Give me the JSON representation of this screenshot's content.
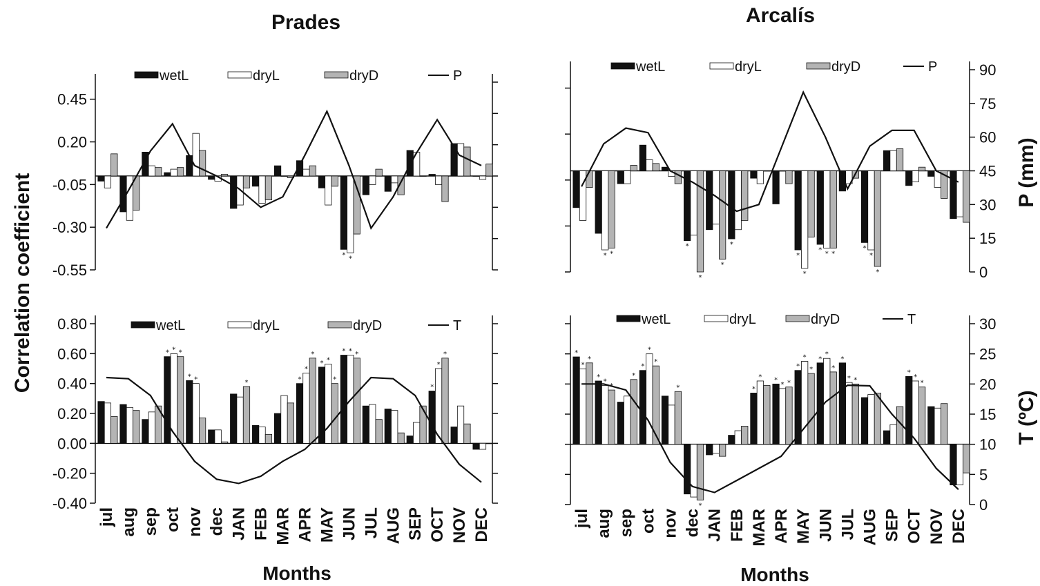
{
  "figure": {
    "months_label": "Months",
    "y_label_corr": "Correlation coefficient",
    "y_label_p": "P (mm)",
    "y_label_t": "T (ºC)",
    "colors": {
      "wetL": "#111111",
      "dryL": "#ffffff",
      "dryD": "#b4b4b4",
      "line": "#111111"
    }
  },
  "chart_data": [
    {
      "id": "prades_p",
      "type": "bar",
      "title": "Prades",
      "ylabel": "Correlation coefficient",
      "ylim": [
        -0.55,
        0.55
      ],
      "y_ticks": [
        0.45,
        0.2,
        -0.05,
        -0.3,
        -0.55
      ],
      "y_tick_labels": [
        "0.45",
        "0.20",
        "-0.05",
        "-0.30",
        "-0.55"
      ],
      "categories": [
        "jul",
        "aug",
        "sep",
        "oct",
        "nov",
        "dec",
        "JAN",
        "FEB",
        "MAR",
        "APR",
        "MAY",
        "JUN",
        "JUL",
        "AUG",
        "SEP",
        "OCT",
        "NOV",
        "DEC"
      ],
      "legend": [
        "wetL",
        "dryL",
        "dryD",
        "P"
      ],
      "series": [
        {
          "name": "wetL",
          "values": [
            -0.03,
            -0.21,
            0.14,
            0.02,
            0.12,
            -0.02,
            -0.19,
            -0.06,
            0.06,
            0.09,
            -0.07,
            -0.43,
            -0.11,
            -0.09,
            0.15,
            0.01,
            0.19,
            0.0
          ]
        },
        {
          "name": "dryL",
          "values": [
            -0.07,
            -0.26,
            0.06,
            0.04,
            0.25,
            -0.03,
            -0.17,
            -0.16,
            0.0,
            0.04,
            -0.17,
            -0.45,
            -0.05,
            -0.04,
            0.14,
            -0.05,
            0.19,
            -0.02
          ]
        },
        {
          "name": "dryD",
          "values": [
            0.13,
            -0.2,
            0.05,
            0.05,
            0.15,
            0.01,
            -0.07,
            -0.14,
            -0.01,
            0.06,
            -0.06,
            -0.34,
            0.04,
            -0.11,
            0.0,
            -0.15,
            0.17,
            0.07
          ]
        },
        {
          "name": "P",
          "axis": "right",
          "values": [
            20,
            38,
            57,
            70,
            50,
            45,
            39,
            30,
            35,
            55,
            76,
            50,
            20,
            35,
            55,
            72,
            55,
            50
          ]
        }
      ],
      "significance": [
        [
          11,
          0
        ],
        [
          11,
          1
        ]
      ],
      "y2lim": [
        0,
        90
      ],
      "y2_ticks": [
        0,
        15,
        30,
        45,
        60,
        75,
        90
      ]
    },
    {
      "id": "arcalis_p",
      "type": "bar",
      "title": "Arcalís",
      "ylabel": "P (mm)",
      "ylim": [
        -0.55,
        0.55
      ],
      "categories": [
        "jul",
        "aug",
        "sep",
        "oct",
        "nov",
        "dec",
        "JAN",
        "FEB",
        "MAR",
        "APR",
        "MAY",
        "JUN",
        "JUL",
        "AUG",
        "SEP",
        "OCT",
        "NOV",
        "DEC"
      ],
      "legend": [
        "wetL",
        "dryL",
        "dryD",
        "P"
      ],
      "series": [
        {
          "name": "wetL",
          "values": [
            -0.2,
            -0.34,
            -0.07,
            0.14,
            0.02,
            -0.38,
            -0.32,
            -0.37,
            -0.04,
            -0.18,
            -0.43,
            -0.4,
            -0.11,
            -0.39,
            0.11,
            -0.08,
            -0.03,
            -0.26
          ]
        },
        {
          "name": "dryL",
          "values": [
            -0.27,
            -0.43,
            -0.07,
            0.06,
            -0.03,
            -0.35,
            -0.29,
            -0.32,
            -0.07,
            0.0,
            -0.53,
            -0.42,
            -0.07,
            -0.43,
            0.11,
            -0.06,
            -0.09,
            -0.25
          ]
        },
        {
          "name": "dryD",
          "values": [
            -0.09,
            -0.42,
            0.03,
            0.04,
            -0.07,
            -0.55,
            -0.48,
            -0.27,
            0.0,
            -0.07,
            -0.36,
            -0.42,
            -0.04,
            -0.52,
            0.12,
            0.02,
            -0.15,
            -0.28
          ]
        },
        {
          "name": "P",
          "axis": "right",
          "values": [
            38,
            57,
            64,
            62,
            45,
            40,
            34,
            27,
            30,
            55,
            80,
            60,
            37,
            56,
            63,
            63,
            45,
            40
          ]
        }
      ],
      "significance": [
        [
          1,
          1
        ],
        [
          1,
          2
        ],
        [
          5,
          0
        ],
        [
          5,
          2
        ],
        [
          6,
          2
        ],
        [
          7,
          0
        ],
        [
          10,
          0
        ],
        [
          10,
          1
        ],
        [
          11,
          0
        ],
        [
          11,
          1
        ],
        [
          11,
          2
        ],
        [
          13,
          0
        ],
        [
          13,
          1
        ],
        [
          13,
          2
        ]
      ],
      "y2lim": [
        0,
        90
      ],
      "y2_ticks": [
        0,
        15,
        30,
        45,
        60,
        75,
        90
      ],
      "y2_tick_labels": [
        "0",
        "15",
        "30",
        "45",
        "60",
        "75",
        "90"
      ]
    },
    {
      "id": "prades_t",
      "type": "bar",
      "xlabel": "Months",
      "ylabel": "Correlation coefficient",
      "ylim": [
        -0.4,
        0.8
      ],
      "y_ticks": [
        0.8,
        0.6,
        0.4,
        0.2,
        0.0,
        -0.2,
        -0.4
      ],
      "y_tick_labels": [
        "0.80",
        "0.60",
        "0.40",
        "0.20",
        "0.00",
        "-0.20",
        "-0.40"
      ],
      "categories": [
        "jul",
        "aug",
        "sep",
        "oct",
        "nov",
        "dec",
        "JAN",
        "FEB",
        "MAR",
        "APR",
        "MAY",
        "JUN",
        "JUL",
        "AUG",
        "SEP",
        "OCT",
        "NOV",
        "DEC"
      ],
      "legend": [
        "wetL",
        "dryL",
        "dryD",
        "T"
      ],
      "series": [
        {
          "name": "wetL",
          "values": [
            0.28,
            0.26,
            0.16,
            0.58,
            0.42,
            0.09,
            0.33,
            0.12,
            0.2,
            0.4,
            0.51,
            0.59,
            0.25,
            0.23,
            0.05,
            0.35,
            0.11,
            -0.04
          ]
        },
        {
          "name": "dryL",
          "values": [
            0.27,
            0.24,
            0.21,
            0.6,
            0.4,
            0.09,
            0.31,
            0.11,
            0.32,
            0.47,
            0.53,
            0.59,
            0.26,
            0.22,
            0.14,
            0.5,
            0.25,
            -0.04
          ]
        },
        {
          "name": "dryD",
          "values": [
            0.18,
            0.22,
            0.25,
            0.58,
            0.17,
            0.01,
            0.38,
            0.06,
            0.27,
            0.57,
            0.4,
            0.57,
            0.16,
            0.07,
            0.25,
            0.57,
            0.13,
            0.0
          ]
        },
        {
          "name": "T",
          "axis": "right",
          "values": [
            21,
            20.8,
            18,
            12,
            7,
            4,
            3.3,
            4.5,
            7,
            9,
            12.5,
            17,
            21,
            20.8,
            18,
            11.5,
            6.5,
            3.5
          ]
        }
      ],
      "significance": [
        [
          3,
          0
        ],
        [
          3,
          1
        ],
        [
          3,
          2
        ],
        [
          4,
          0
        ],
        [
          4,
          1
        ],
        [
          6,
          2
        ],
        [
          9,
          0
        ],
        [
          9,
          1
        ],
        [
          9,
          2
        ],
        [
          10,
          0
        ],
        [
          10,
          1
        ],
        [
          10,
          2
        ],
        [
          11,
          0
        ],
        [
          11,
          1
        ],
        [
          11,
          2
        ],
        [
          15,
          0
        ],
        [
          15,
          1
        ],
        [
          15,
          2
        ]
      ],
      "y2lim": [
        0,
        30
      ],
      "y2_ticks": [
        0,
        5,
        10,
        15,
        20,
        25,
        30
      ]
    },
    {
      "id": "arcalis_t",
      "type": "bar",
      "xlabel": "Months",
      "ylabel": "T (ºC)",
      "ylim": [
        -0.4,
        0.8
      ],
      "categories": [
        "jul",
        "aug",
        "sep",
        "oct",
        "nov",
        "dec",
        "JAN",
        "FEB",
        "MAR",
        "APR",
        "MAY",
        "JUN",
        "JUL",
        "AUG",
        "SEP",
        "OCT",
        "NOV",
        "DEC"
      ],
      "legend": [
        "wetL",
        "dryL",
        "dryD",
        "T"
      ],
      "series": [
        {
          "name": "wetL",
          "values": [
            0.58,
            0.42,
            0.28,
            0.49,
            0.32,
            -0.33,
            -0.07,
            0.06,
            0.34,
            0.4,
            0.49,
            0.54,
            0.54,
            0.31,
            0.09,
            0.45,
            0.25,
            -0.27
          ]
        },
        {
          "name": "dryL",
          "values": [
            0.5,
            0.39,
            0.32,
            0.6,
            0.26,
            -0.35,
            -0.06,
            0.09,
            0.42,
            0.37,
            0.55,
            0.57,
            0.41,
            0.33,
            0.13,
            0.42,
            0.24,
            -0.27
          ]
        },
        {
          "name": "dryD",
          "values": [
            0.54,
            0.36,
            0.43,
            0.52,
            0.35,
            -0.37,
            -0.08,
            0.12,
            0.39,
            0.38,
            0.47,
            0.48,
            0.4,
            0.34,
            0.25,
            0.38,
            0.27,
            -0.19
          ]
        },
        {
          "name": "T",
          "axis": "right",
          "values": [
            20,
            20,
            19,
            14,
            7,
            3,
            2,
            4,
            6,
            8,
            12.5,
            17,
            19.8,
            19.7,
            15,
            11,
            6,
            2.5
          ]
        }
      ],
      "significance": [
        [
          0,
          0
        ],
        [
          0,
          1
        ],
        [
          0,
          2
        ],
        [
          1,
          0
        ],
        [
          1,
          1
        ],
        [
          1,
          2
        ],
        [
          2,
          2
        ],
        [
          3,
          0
        ],
        [
          3,
          1
        ],
        [
          3,
          2
        ],
        [
          4,
          2
        ],
        [
          5,
          2
        ],
        [
          8,
          0
        ],
        [
          8,
          1
        ],
        [
          9,
          0
        ],
        [
          9,
          1
        ],
        [
          9,
          2
        ],
        [
          10,
          0
        ],
        [
          10,
          1
        ],
        [
          10,
          2
        ],
        [
          11,
          0
        ],
        [
          11,
          1
        ],
        [
          11,
          2
        ],
        [
          12,
          0
        ],
        [
          12,
          1
        ],
        [
          12,
          2
        ],
        [
          15,
          0
        ],
        [
          15,
          1
        ],
        [
          15,
          2
        ]
      ],
      "y2lim": [
        0,
        30
      ],
      "y2_ticks": [
        0,
        5,
        10,
        15,
        20,
        25,
        30
      ],
      "y2_tick_labels": [
        "0",
        "5",
        "10",
        "15",
        "20",
        "25",
        "30"
      ]
    }
  ]
}
